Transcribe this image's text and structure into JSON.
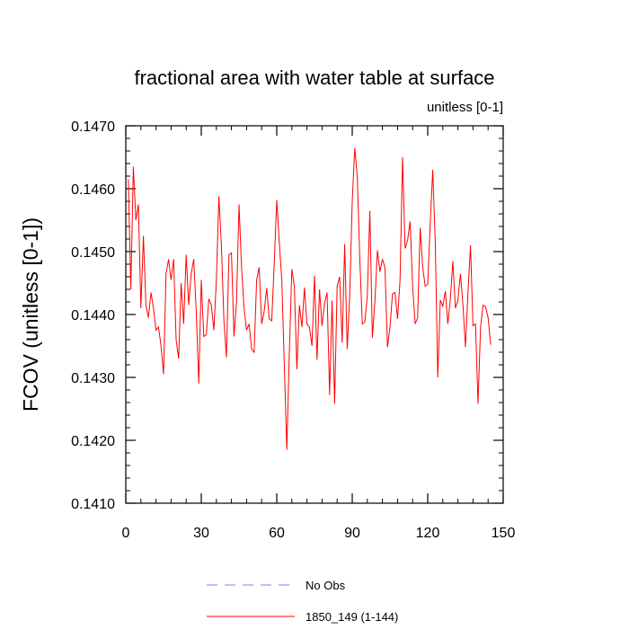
{
  "chart_data": {
    "type": "line",
    "title": "fractional area with water table at surface",
    "units_label": "unitless [0-1]",
    "xlabel": "",
    "ylabel": "FCOV  (unitless [0-1])",
    "xlim": [
      0,
      150
    ],
    "ylim": [
      0.141,
      0.147
    ],
    "x_ticks": [
      0,
      30,
      60,
      90,
      120,
      150
    ],
    "x_tick_labels": [
      "0",
      "30",
      "60",
      "90",
      "120",
      "150"
    ],
    "y_ticks": [
      0.141,
      0.142,
      0.143,
      0.144,
      0.145,
      0.146,
      0.147
    ],
    "y_tick_labels": [
      "0.1410",
      "0.1420",
      "0.1430",
      "0.1440",
      "0.1450",
      "0.1460",
      "0.1470"
    ],
    "grid": false,
    "legend_position": "bottom-center",
    "series": [
      {
        "name": "No Obs",
        "color": "#8080ff",
        "style": "dashed",
        "x": [],
        "y": []
      },
      {
        "name": "1850_149 (1-144)",
        "color": "#ff0000",
        "style": "solid",
        "x": [
          1,
          2,
          3,
          4,
          5,
          6,
          7,
          8,
          9,
          10,
          11,
          12,
          13,
          14,
          15,
          16,
          17,
          18,
          19,
          20,
          21,
          22,
          23,
          24,
          25,
          26,
          27,
          28,
          29,
          30,
          31,
          32,
          33,
          34,
          35,
          36,
          37,
          38,
          39,
          40,
          41,
          42,
          43,
          44,
          45,
          46,
          47,
          48,
          49,
          50,
          51,
          52,
          53,
          54,
          55,
          56,
          57,
          58,
          59,
          60,
          61,
          62,
          63,
          64,
          65,
          66,
          67,
          68,
          69,
          70,
          71,
          72,
          73,
          74,
          75,
          76,
          77,
          78,
          79,
          80,
          81,
          82,
          83,
          84,
          85,
          86,
          87,
          88,
          89,
          90,
          91,
          92,
          93,
          94,
          95,
          96,
          97,
          98,
          99,
          100,
          101,
          102,
          103,
          104,
          105,
          106,
          107,
          108,
          109,
          110,
          111,
          112,
          113,
          114,
          115,
          116,
          117,
          118,
          119,
          120,
          121,
          122,
          123,
          124,
          125,
          126,
          127,
          128,
          129,
          130,
          131,
          132,
          133,
          134,
          135,
          136,
          137,
          138,
          139,
          140,
          141,
          142,
          143,
          144,
          145
        ],
        "y": [
          0.14615,
          0.1444,
          0.14635,
          0.1455,
          0.14575,
          0.1441,
          0.14525,
          0.14415,
          0.14395,
          0.14435,
          0.1441,
          0.14375,
          0.1438,
          0.1435,
          0.14305,
          0.14465,
          0.14488,
          0.14455,
          0.14488,
          0.1436,
          0.1433,
          0.1445,
          0.14385,
          0.14495,
          0.14415,
          0.14465,
          0.14488,
          0.14405,
          0.1429,
          0.14455,
          0.14365,
          0.14368,
          0.14425,
          0.14415,
          0.14375,
          0.14455,
          0.14588,
          0.1451,
          0.1439,
          0.14332,
          0.14495,
          0.14498,
          0.14365,
          0.1442,
          0.14575,
          0.14475,
          0.1441,
          0.14375,
          0.14385,
          0.14345,
          0.1434,
          0.14455,
          0.14475,
          0.14385,
          0.14405,
          0.14442,
          0.14393,
          0.1439,
          0.14482,
          0.14582,
          0.14515,
          0.14455,
          0.1432,
          0.14185,
          0.1434,
          0.14472,
          0.14445,
          0.14313,
          0.14415,
          0.1438,
          0.14443,
          0.14385,
          0.1438,
          0.1435,
          0.14462,
          0.14328,
          0.1444,
          0.14382,
          0.14418,
          0.14435,
          0.14272,
          0.14422,
          0.14258,
          0.14445,
          0.1446,
          0.14355,
          0.14512,
          0.14345,
          0.1443,
          0.1458,
          0.14665,
          0.1462,
          0.1449,
          0.14385,
          0.14388,
          0.1443,
          0.14565,
          0.14363,
          0.1442,
          0.14502,
          0.14468,
          0.14488,
          0.14475,
          0.14348,
          0.1438,
          0.14433,
          0.14435,
          0.14393,
          0.14455,
          0.1465,
          0.14505,
          0.14518,
          0.14548,
          0.14445,
          0.14385,
          0.14395,
          0.14538,
          0.14475,
          0.14445,
          0.14448,
          0.14545,
          0.1463,
          0.14515,
          0.143,
          0.14423,
          0.14413,
          0.14437,
          0.14385,
          0.14425,
          0.14485,
          0.1441,
          0.14423,
          0.14465,
          0.14415,
          0.14348,
          0.14435,
          0.1451,
          0.14382,
          0.14385,
          0.14258,
          0.1438,
          0.14415,
          0.14412,
          0.14395,
          0.14352
        ]
      }
    ]
  }
}
